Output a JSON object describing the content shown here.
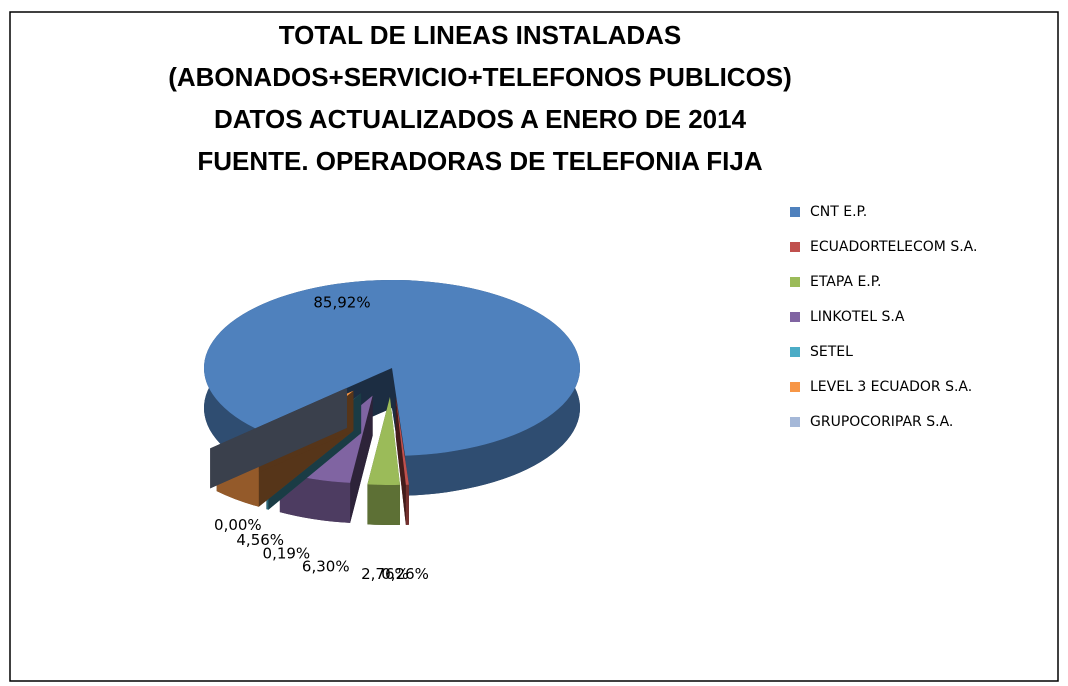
{
  "chart_data": {
    "type": "pie",
    "title": [
      "TOTAL DE LINEAS INSTALADAS",
      "(ABONADOS+SERVICIO+TELEFONOS PUBLICOS)",
      "DATOS ACTUALIZADOS A ENERO DE 2014",
      "FUENTE. OPERADORAS DE TELEFONIA FIJA"
    ],
    "categories": [
      "CNT E.P.",
      "ECUADORTELECOM  S.A.",
      "ETAPA E.P.",
      "LINKOTEL S.A",
      "SETEL",
      "LEVEL 3 ECUADOR S.A.",
      "GRUPOCORIPAR S.A."
    ],
    "values": [
      85.92,
      0.26,
      2.76,
      6.3,
      0.19,
      4.56,
      0.0
    ],
    "value_labels": [
      "85,92%",
      "0,26%",
      "2,76%",
      "6,30%",
      "0,19%",
      "4,56%",
      "0,00%"
    ],
    "colors": [
      "#4F81BD",
      "#C0504D",
      "#9BBB59",
      "#8064A2",
      "#4BACC6",
      "#F79646",
      "#A5B8D8"
    ],
    "legend": "right"
  }
}
